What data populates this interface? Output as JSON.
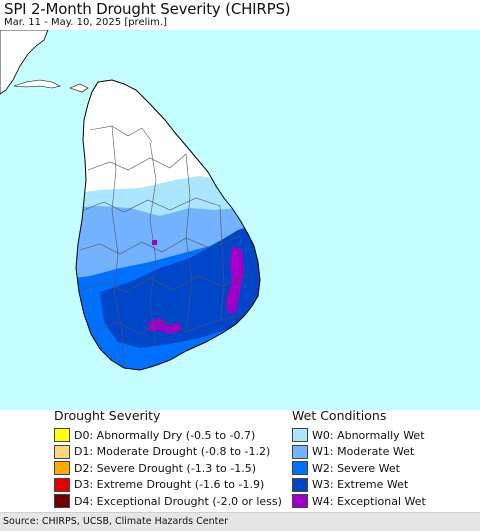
{
  "title": "SPI 2-Month Drought Severity (CHIRPS)",
  "subtitle": "Mar. 11 - May. 10, 2025 [prelim.]",
  "colors": {
    "ocean": "#c4fefe",
    "land_none": "#ffffff",
    "india": "#ffffff"
  },
  "legend": {
    "drought": {
      "heading": "Drought Severity",
      "items": [
        {
          "label": "D0: Abnormally Dry (-0.5 to -0.7)",
          "color": "#ffff00"
        },
        {
          "label": "D1: Moderate Drought (-0.8 to -1.2)",
          "color": "#fcd37f"
        },
        {
          "label": "D2: Severe Drought (-1.3 to -1.5)",
          "color": "#ffaa00"
        },
        {
          "label": "D3: Extreme Drought (-1.6 to -1.9)",
          "color": "#e60000"
        },
        {
          "label": "D4: Exceptional Drought (-2.0 or less)",
          "color": "#730000"
        }
      ]
    },
    "wet": {
      "heading": "Wet Conditions",
      "items": [
        {
          "label": "W0: Abnormally Wet",
          "color": "#aae6ff"
        },
        {
          "label": "W1: Moderate Wet",
          "color": "#73b2ff"
        },
        {
          "label": "W2: Severe Wet",
          "color": "#0070ff"
        },
        {
          "label": "W3: Extreme Wet",
          "color": "#0046c8"
        },
        {
          "label": "W4: Exceptional Wet",
          "color": "#a000c8"
        }
      ]
    }
  },
  "source": "Source: CHIRPS, UCSB, Climate Hazards Center"
}
